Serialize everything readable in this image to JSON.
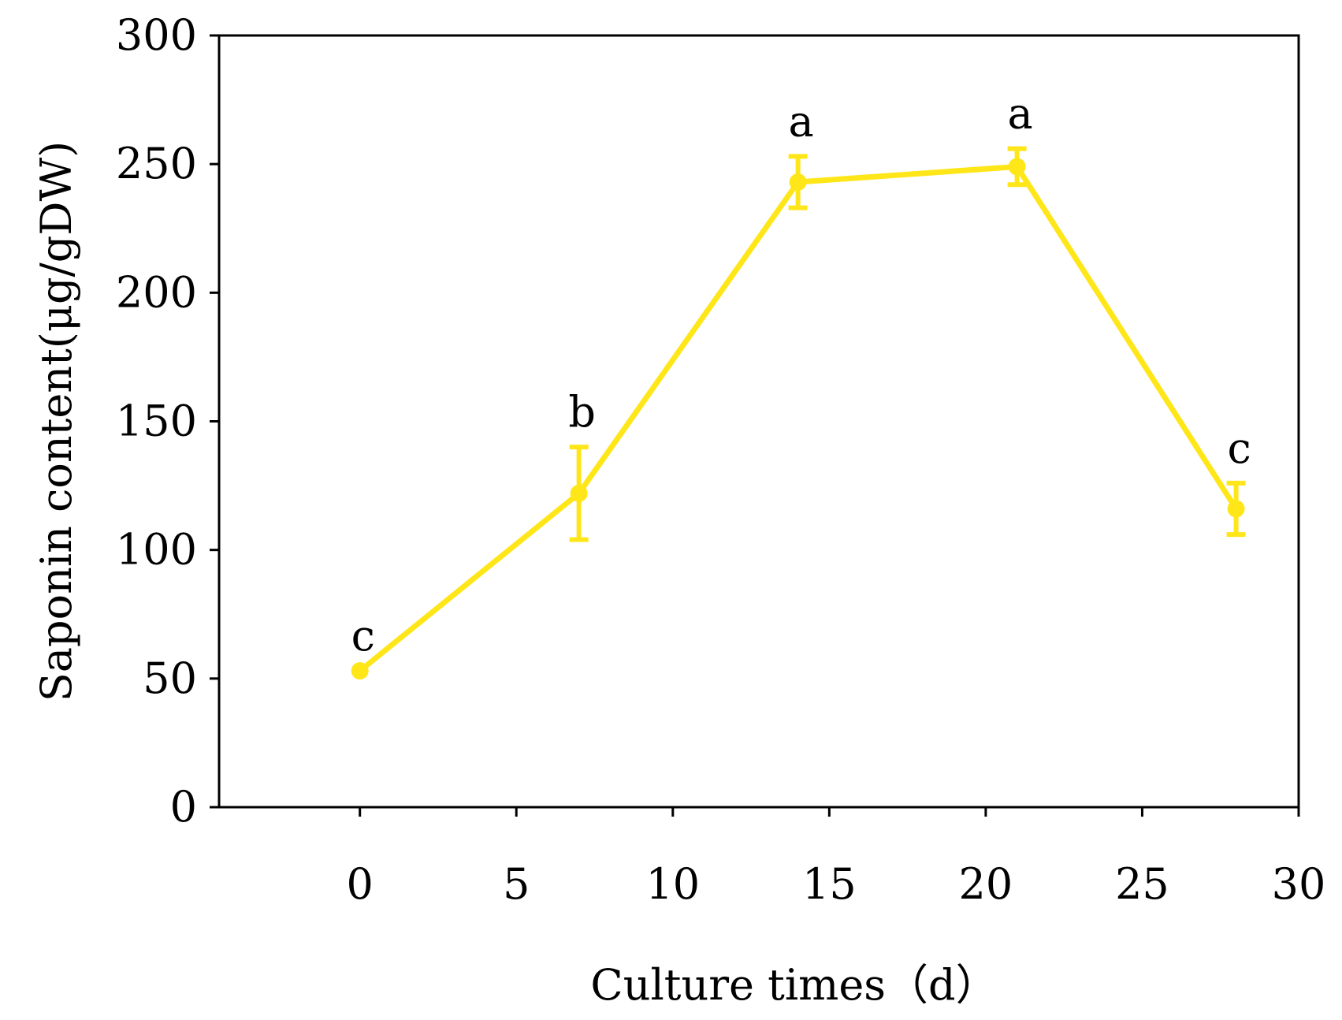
{
  "chart_data": {
    "type": "line",
    "title": "",
    "xlabel": "Culture times（d）",
    "ylabel": "Saponin content(μg/gDW)",
    "xlim": [
      -4.5,
      30
    ],
    "ylim": [
      0,
      300
    ],
    "xticks": [
      0,
      5,
      10,
      15,
      20,
      25,
      30
    ],
    "yticks": [
      0,
      50,
      100,
      150,
      200,
      250,
      300
    ],
    "grid": false,
    "line_color": "#ffe619",
    "series": [
      {
        "x": [
          0,
          7,
          14,
          21,
          28
        ],
        "values": [
          53,
          122,
          243,
          249,
          116
        ],
        "error": [
          0,
          18,
          10,
          7,
          10
        ],
        "labels": [
          "c",
          "b",
          "a",
          "a",
          "c"
        ]
      }
    ]
  }
}
